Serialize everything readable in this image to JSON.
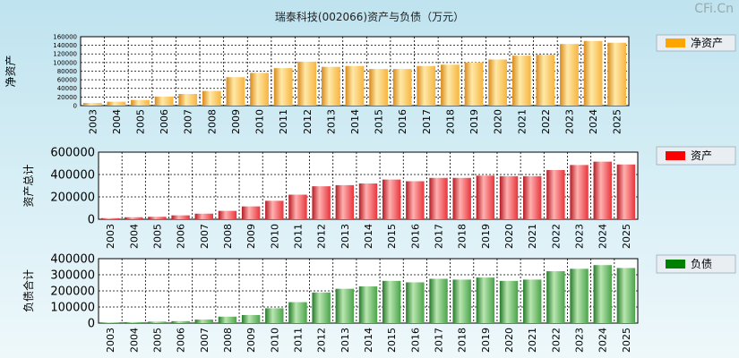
{
  "title": "瑞泰科技(002066)资产与负债（万元）",
  "watermark": "CFi.Cn",
  "chart_data": [
    {
      "type": "bar",
      "ylabel": "净资产",
      "legend": "净资产",
      "legend_color": "#ffa500",
      "ylim": [
        0,
        160000
      ],
      "yticks": [
        0,
        20000,
        40000,
        60000,
        80000,
        100000,
        120000,
        140000,
        160000
      ],
      "categories": [
        "2003",
        "2004",
        "2005",
        "2006",
        "2007",
        "2008",
        "2009",
        "2010",
        "2011",
        "2012",
        "2013",
        "2014",
        "2015",
        "2016",
        "2017",
        "2018",
        "2019",
        "2020",
        "2021",
        "2022",
        "2023",
        "2024",
        "2025"
      ],
      "values": [
        6000,
        9000,
        13000,
        21000,
        27000,
        34000,
        66000,
        76000,
        87000,
        102000,
        90000,
        92000,
        85000,
        85000,
        92000,
        95000,
        100000,
        107000,
        116000,
        118000,
        143000,
        150000,
        146000
      ]
    },
    {
      "type": "bar",
      "ylabel": "资产总计",
      "legend": "资产",
      "legend_color": "#ff0000",
      "ylim": [
        0,
        600000
      ],
      "yticks": [
        0,
        200000,
        400000,
        600000
      ],
      "categories": [
        "2003",
        "2004",
        "2005",
        "2006",
        "2007",
        "2008",
        "2009",
        "2010",
        "2011",
        "2012",
        "2013",
        "2014",
        "2015",
        "2016",
        "2017",
        "2018",
        "2019",
        "2020",
        "2021",
        "2022",
        "2023",
        "2024",
        "2025"
      ],
      "values": [
        10000,
        18000,
        22000,
        35000,
        50000,
        75000,
        115000,
        165000,
        220000,
        295000,
        305000,
        320000,
        355000,
        340000,
        370000,
        370000,
        390000,
        385000,
        385000,
        440000,
        485000,
        515000,
        490000
      ]
    },
    {
      "type": "bar",
      "ylabel": "负债合计",
      "legend": "负债",
      "legend_color": "#008000",
      "ylim": [
        0,
        400000
      ],
      "yticks": [
        0,
        100000,
        200000,
        300000,
        400000
      ],
      "categories": [
        "2003",
        "2004",
        "2005",
        "2006",
        "2007",
        "2008",
        "2009",
        "2010",
        "2011",
        "2012",
        "2013",
        "2014",
        "2015",
        "2016",
        "2017",
        "2018",
        "2019",
        "2020",
        "2021",
        "2022",
        "2023",
        "2024",
        "2025"
      ],
      "values": [
        4000,
        6000,
        9000,
        12000,
        22000,
        40000,
        50000,
        92000,
        130000,
        190000,
        213000,
        228000,
        262000,
        253000,
        275000,
        270000,
        283000,
        262000,
        270000,
        322000,
        337000,
        360000,
        342000
      ]
    }
  ]
}
